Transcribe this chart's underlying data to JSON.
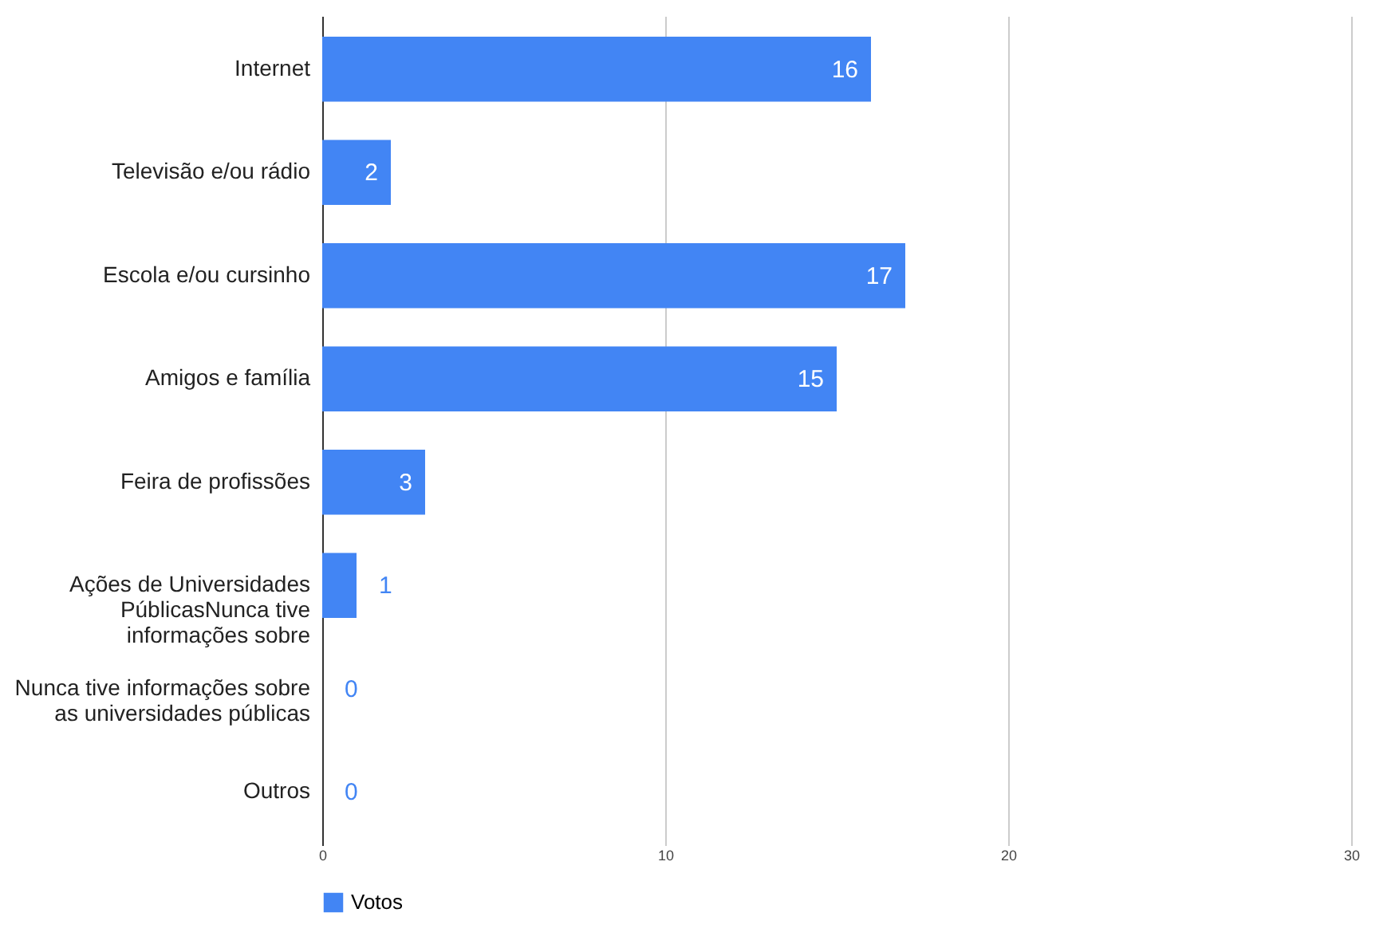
{
  "chart_data": {
    "type": "bar",
    "orientation": "horizontal",
    "categories": [
      "Internet",
      "Televisão e/ou rádio",
      "Escola e/ou cursinho",
      "Amigos e família",
      "Feira de profissões",
      "Ações de Universidades PúblicasNunca tive informações sobre",
      "Nunca tive informações sobre as universidades públicas",
      "Outros"
    ],
    "series": [
      {
        "name": "Votos",
        "color": "#4285f4",
        "values": [
          16,
          2,
          17,
          15,
          3,
          1,
          0,
          0
        ]
      }
    ],
    "xlim": [
      0,
      30
    ],
    "xticks": [
      0,
      10,
      20,
      30
    ],
    "grid": "x",
    "legend": "bottom",
    "data_labels": true
  }
}
